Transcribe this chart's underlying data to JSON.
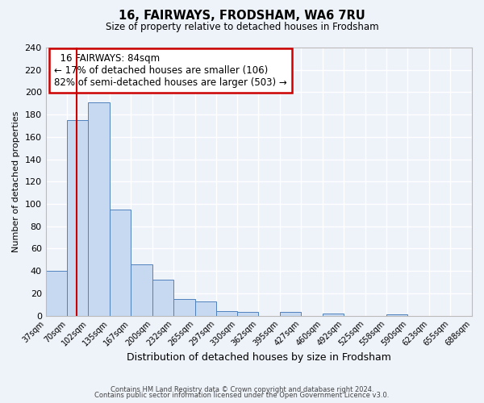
{
  "title": "16, FAIRWAYS, FRODSHAM, WA6 7RU",
  "subtitle": "Size of property relative to detached houses in Frodsham",
  "xlabel": "Distribution of detached houses by size in Frodsham",
  "ylabel": "Number of detached properties",
  "bar_values": [
    40,
    175,
    191,
    95,
    46,
    32,
    15,
    13,
    4,
    3,
    0,
    3,
    0,
    2,
    0,
    0,
    1,
    0,
    0,
    0
  ],
  "bin_edges": [
    37,
    70,
    102,
    135,
    167,
    200,
    232,
    265,
    297,
    330,
    362,
    395,
    427,
    460,
    492,
    525,
    558,
    590,
    623,
    655,
    688
  ],
  "tick_labels": [
    "37sqm",
    "70sqm",
    "102sqm",
    "135sqm",
    "167sqm",
    "200sqm",
    "232sqm",
    "265sqm",
    "297sqm",
    "330sqm",
    "362sqm",
    "395sqm",
    "427sqm",
    "460sqm",
    "492sqm",
    "525sqm",
    "558sqm",
    "590sqm",
    "623sqm",
    "655sqm",
    "688sqm"
  ],
  "bar_color": "#c6d9f1",
  "bar_edge_color": "#4f81bd",
  "vline_x": 84,
  "vline_color": "#cc0000",
  "ylim": [
    0,
    240
  ],
  "yticks": [
    0,
    20,
    40,
    60,
    80,
    100,
    120,
    140,
    160,
    180,
    200,
    220,
    240
  ],
  "annotation_title": "16 FAIRWAYS: 84sqm",
  "annotation_line1": "← 17% of detached houses are smaller (106)",
  "annotation_line2": "82% of semi-detached houses are larger (503) →",
  "annotation_box_color": "#ffffff",
  "annotation_box_edge": "#cc0000",
  "footer1": "Contains HM Land Registry data © Crown copyright and database right 2024.",
  "footer2": "Contains public sector information licensed under the Open Government Licence v3.0.",
  "background_color": "#eef2f9",
  "grid_color": "#ffffff",
  "spine_color": "#bbbbbb"
}
